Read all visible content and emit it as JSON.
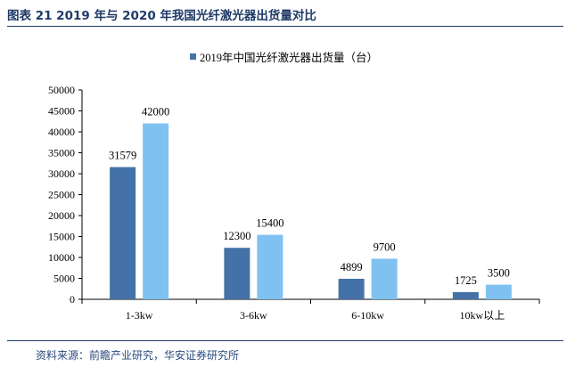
{
  "header": {
    "title": "图表 21 2019 年与 2020 年我国光纤激光器出货量对比"
  },
  "footer": {
    "source": "资料来源：前瞻产业研究，华安证券研究所"
  },
  "colors": {
    "series_2019": "#4472a8",
    "series_2020": "#7fc2f2",
    "title": "#1f3a68"
  },
  "chart_data": {
    "type": "bar",
    "categories": [
      "1-3kw",
      "3-6kw",
      "6-10kw",
      "10kw以上"
    ],
    "series": [
      {
        "name": "2019年中国光纤激光器出货量（台）",
        "values": [
          31579,
          12300,
          4899,
          1725
        ]
      },
      {
        "name": "",
        "values": [
          42000,
          15400,
          9700,
          3500
        ]
      }
    ],
    "ylim": [
      0,
      50000
    ],
    "yticks": [
      0,
      5000,
      10000,
      15000,
      20000,
      25000,
      30000,
      35000,
      40000,
      45000,
      50000
    ],
    "legend": "top-center",
    "grid": false
  }
}
